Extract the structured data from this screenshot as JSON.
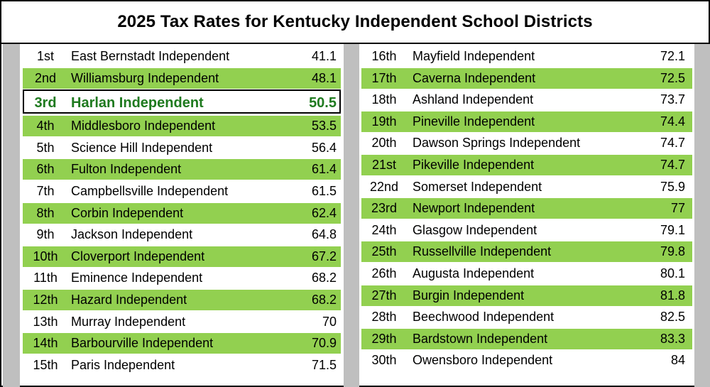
{
  "chart_data": {
    "type": "table",
    "title": "2025 Tax Rates for Kentucky Independent School Districts",
    "highlight_rank": "3rd",
    "colors": {
      "band": "#92d050",
      "highlight_text": "#1f7a1f",
      "gutter": "#bfbfbf"
    },
    "rows_left": [
      {
        "rank": "1st",
        "name": "East Bernstadt Independent",
        "rate": "41.1"
      },
      {
        "rank": "2nd",
        "name": "Williamsburg Independent",
        "rate": "48.1"
      },
      {
        "rank": "3rd",
        "name": "Harlan Independent",
        "rate": "50.5"
      },
      {
        "rank": "4th",
        "name": "Middlesboro Independent",
        "rate": "53.5"
      },
      {
        "rank": "5th",
        "name": "Science Hill Independent",
        "rate": "56.4"
      },
      {
        "rank": "6th",
        "name": "Fulton Independent",
        "rate": "61.4"
      },
      {
        "rank": "7th",
        "name": "Campbellsville Independent",
        "rate": "61.5"
      },
      {
        "rank": "8th",
        "name": "Corbin Independent",
        "rate": "62.4"
      },
      {
        "rank": "9th",
        "name": "Jackson Independent",
        "rate": "64.8"
      },
      {
        "rank": "10th",
        "name": "Cloverport Independent",
        "rate": "67.2"
      },
      {
        "rank": "11th",
        "name": "Eminence Independent",
        "rate": "68.2"
      },
      {
        "rank": "12th",
        "name": "Hazard Independent",
        "rate": "68.2"
      },
      {
        "rank": "13th",
        "name": "Murray Independent",
        "rate": "70"
      },
      {
        "rank": "14th",
        "name": "Barbourville Independent",
        "rate": "70.9"
      },
      {
        "rank": "15th",
        "name": "Paris Independent",
        "rate": "71.5"
      }
    ],
    "rows_right": [
      {
        "rank": "16th",
        "name": "Mayfield Independent",
        "rate": "72.1"
      },
      {
        "rank": "17th",
        "name": "Caverna Independent",
        "rate": "72.5"
      },
      {
        "rank": "18th",
        "name": "Ashland Independent",
        "rate": "73.7"
      },
      {
        "rank": "19th",
        "name": "Pineville Independent",
        "rate": "74.4"
      },
      {
        "rank": "20th",
        "name": "Dawson Springs Independent",
        "rate": "74.7"
      },
      {
        "rank": "21st",
        "name": "Pikeville Independent",
        "rate": "74.7"
      },
      {
        "rank": "22nd",
        "name": "Somerset Independent",
        "rate": "75.9"
      },
      {
        "rank": "23rd",
        "name": "Newport Independent",
        "rate": "77"
      },
      {
        "rank": "24th",
        "name": "Glasgow Independent",
        "rate": "79.1"
      },
      {
        "rank": "25th",
        "name": "Russellville Independent",
        "rate": "79.8"
      },
      {
        "rank": "26th",
        "name": "Augusta Independent",
        "rate": "80.1"
      },
      {
        "rank": "27th",
        "name": "Burgin Independent",
        "rate": "81.8"
      },
      {
        "rank": "28th",
        "name": "Beechwood Independent",
        "rate": "82.5"
      },
      {
        "rank": "29th",
        "name": "Bardstown Independent",
        "rate": "83.3"
      },
      {
        "rank": "30th",
        "name": "Owensboro Independent",
        "rate": "84"
      }
    ]
  }
}
